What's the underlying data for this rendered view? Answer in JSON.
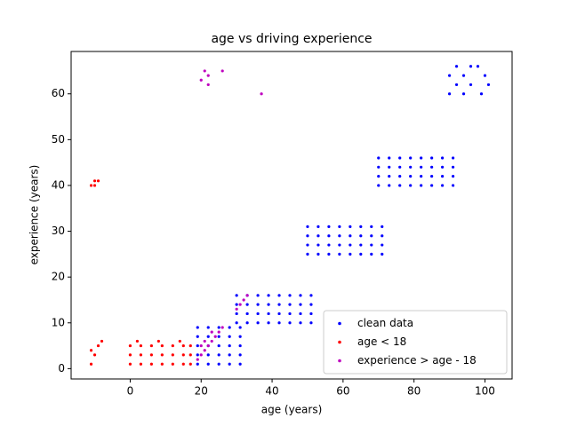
{
  "chart_data": {
    "type": "scatter",
    "title": "age vs driving experience",
    "x_label": "age (years)",
    "y_label": "experience (years)",
    "xlim": [
      -16.65,
      107.65
    ],
    "ylim": [
      -2.25,
      69.25
    ],
    "xticks": [
      0,
      20,
      40,
      60,
      80,
      100
    ],
    "yticks": [
      0,
      10,
      20,
      30,
      40,
      50,
      60
    ],
    "grid": false,
    "legend": "lower right",
    "series": [
      {
        "name": "clean data",
        "color": "#0000ff",
        "x": [
          19,
          19,
          19,
          19,
          19,
          22,
          22,
          22,
          22,
          22,
          25,
          25,
          25,
          25,
          25,
          28,
          28,
          28,
          28,
          28,
          31,
          31,
          31,
          31,
          31,
          30,
          30,
          30,
          30,
          33,
          33,
          33,
          33,
          36,
          36,
          36,
          36,
          39,
          39,
          39,
          39,
          42,
          42,
          42,
          42,
          45,
          45,
          45,
          45,
          48,
          48,
          48,
          48,
          51,
          51,
          51,
          51,
          50,
          50,
          50,
          50,
          53,
          53,
          53,
          53,
          56,
          56,
          56,
          56,
          59,
          59,
          59,
          59,
          62,
          62,
          62,
          62,
          65,
          65,
          65,
          65,
          68,
          68,
          68,
          68,
          71,
          71,
          71,
          71,
          70,
          70,
          70,
          70,
          73,
          73,
          73,
          73,
          76,
          76,
          76,
          76,
          79,
          79,
          79,
          79,
          82,
          82,
          82,
          82,
          85,
          85,
          85,
          85,
          88,
          88,
          88,
          88,
          91,
          91,
          91,
          91,
          90,
          90,
          92,
          92,
          94,
          94,
          96,
          96,
          98,
          99,
          100,
          101
        ],
        "values": [
          1,
          3,
          5,
          7,
          9,
          1,
          3,
          5,
          7,
          9,
          1,
          3,
          5,
          7,
          9,
          1,
          3,
          5,
          7,
          9,
          1,
          3,
          5,
          7,
          9,
          10,
          12,
          14,
          16,
          10,
          12,
          14,
          16,
          10,
          12,
          14,
          16,
          10,
          12,
          14,
          16,
          10,
          12,
          14,
          16,
          10,
          12,
          14,
          16,
          10,
          12,
          14,
          16,
          10,
          12,
          14,
          16,
          25,
          27,
          29,
          31,
          25,
          27,
          29,
          31,
          25,
          27,
          29,
          31,
          25,
          27,
          29,
          31,
          25,
          27,
          29,
          31,
          25,
          27,
          29,
          31,
          25,
          27,
          29,
          31,
          25,
          27,
          29,
          31,
          40,
          42,
          44,
          46,
          40,
          42,
          44,
          46,
          40,
          42,
          44,
          46,
          40,
          42,
          44,
          46,
          40,
          42,
          44,
          46,
          40,
          42,
          44,
          46,
          40,
          42,
          44,
          46,
          40,
          42,
          44,
          46,
          60,
          64,
          62,
          66,
          60,
          64,
          62,
          66,
          66,
          60,
          64,
          62
        ]
      },
      {
        "name": "age < 18",
        "color": "#ff0000",
        "x": [
          -11,
          -10,
          -9,
          -10,
          -11,
          -10,
          -9,
          -8,
          -11,
          0,
          0,
          0,
          3,
          3,
          3,
          6,
          6,
          6,
          9,
          9,
          9,
          12,
          12,
          12,
          15,
          15,
          15,
          17,
          17,
          17,
          2,
          8,
          14
        ],
        "values": [
          40,
          41,
          41,
          40,
          1,
          3,
          5,
          6,
          4,
          1,
          3,
          5,
          1,
          3,
          5,
          1,
          3,
          5,
          1,
          3,
          5,
          1,
          3,
          5,
          1,
          3,
          5,
          1,
          3,
          5,
          6,
          6,
          6
        ]
      },
      {
        "name": "experience > age - 18",
        "color": "#bf00bf",
        "x": [
          19,
          20,
          21,
          22,
          23,
          24,
          25,
          26,
          30,
          31,
          32,
          33,
          21,
          23,
          20,
          20,
          21,
          22,
          22,
          26,
          37
        ],
        "values": [
          2,
          3,
          4,
          5,
          6,
          7,
          8,
          9,
          13,
          14,
          15,
          16,
          6,
          8,
          5,
          63,
          65,
          62,
          64,
          65,
          60
        ]
      }
    ]
  }
}
